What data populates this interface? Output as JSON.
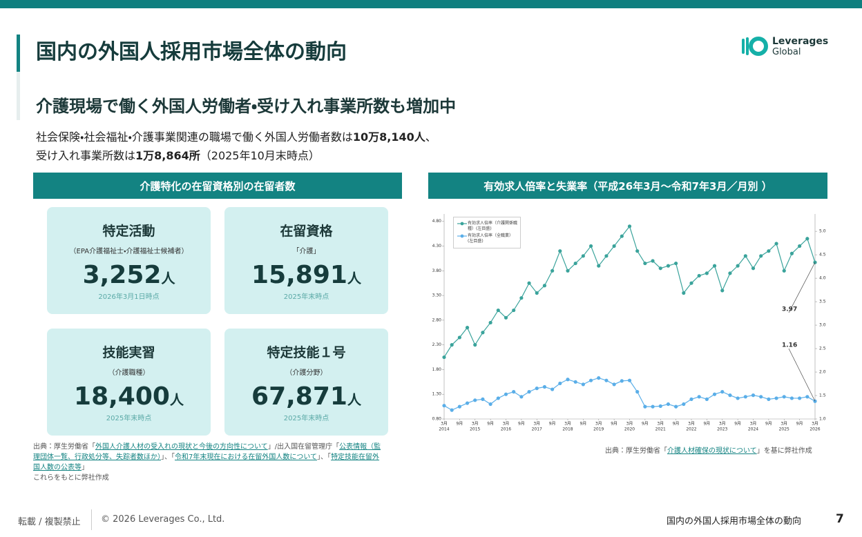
{
  "header": {
    "title": "国内の外国人採用市場全体の動向",
    "logo": [
      "Leverages",
      "Global"
    ]
  },
  "subtitle": "介護現場で働く外国人労働者・受け入れ事業所数も増加中",
  "intro": [
    [
      {
        "text": "社会保険・社会福祉・介護事業関連の職場で働く外国人労働者数は"
      },
      {
        "text": "10万8,140人",
        "bold": true
      },
      {
        "text": "、"
      }
    ],
    [
      {
        "text": "受け入れ事業所数は"
      },
      {
        "text": "1万8,864所",
        "bold": true
      },
      {
        "text": "（2025年10月末時点）"
      }
    ]
  ],
  "left_panel": {
    "header": "介護特化の在留資格別の在留者数",
    "cards": [
      {
        "title": "特定活動",
        "note": "（EPA介護福祉士・介護福祉士候補者）",
        "value": "3,252",
        "unit": "人",
        "date": "2026年3月1日時点"
      },
      {
        "title": "在留資格",
        "note": "「介護」",
        "value": "15,891",
        "unit": "人",
        "date": "2025年末時点"
      },
      {
        "title": "技能実習",
        "note": "（介護職種）",
        "value": "18,400",
        "unit": "人",
        "date": "2025年末時点"
      },
      {
        "title": "特定技能１号",
        "note": "（介護分野）",
        "value": "67,871",
        "unit": "人",
        "date": "2025年末時点"
      }
    ],
    "source": [
      [
        {
          "text": "出典：厚生労働省「"
        },
        {
          "text": "外国人介護人材の受入れの現状と今後の方向性について",
          "link": true
        },
        {
          "text": "」/出入国在留管理庁「"
        },
        {
          "text": "公表情報（監理団体一覧、行政処分等、失踪者数ほか）",
          "link": true
        },
        {
          "text": "」、「"
        },
        {
          "text": "令和7年末現在における在留外国人数について",
          "link": true
        },
        {
          "text": "」、「"
        },
        {
          "text": "特定技能在留外国人数の公表等",
          "link": true
        },
        {
          "text": "」"
        }
      ],
      [
        {
          "text": "これらをもとに弊社作成"
        }
      ]
    ]
  },
  "right_panel": {
    "header": "有効求人倍率と失業率（平成26年3月〜令和7年3月／月別 ）",
    "source": [
      [
        {
          "text": "出典：厚生労働省「"
        },
        {
          "text": "介護人材確保の現状について",
          "link": true
        },
        {
          "text": "」を基に弊社作成"
        }
      ]
    ]
  },
  "chart_data": {
    "type": "line",
    "categories": [
      "3月",
      null,
      "9月",
      null,
      "3月",
      null,
      "9月",
      null,
      "3月",
      null,
      "9月",
      null,
      "3月",
      null,
      "9月",
      null,
      "3月",
      null,
      "9月",
      null,
      "3月",
      null,
      "9月",
      null,
      "3月",
      null,
      "9月",
      null,
      "3月",
      null,
      "9月",
      null,
      "3月",
      null,
      "9月",
      null,
      "3月",
      null,
      "9月",
      null,
      "3月",
      null,
      "9月",
      null,
      "3月",
      null,
      "9月",
      null,
      "3月"
    ],
    "years": [
      "2014",
      "2015",
      "2016",
      "2017",
      "2018",
      "2019",
      "2020",
      "2021",
      "2022",
      "2023",
      "2024",
      "2025",
      "2026"
    ],
    "series": [
      {
        "name": "有効求人倍率（介護関係職種）(左目盛)",
        "color": "#3aa39b",
        "values": [
          2.05,
          2.3,
          2.45,
          2.65,
          2.3,
          2.55,
          2.75,
          3.0,
          2.85,
          3.0,
          3.25,
          3.55,
          3.35,
          3.5,
          3.8,
          4.2,
          3.8,
          3.95,
          4.1,
          4.3,
          3.9,
          4.1,
          4.3,
          4.5,
          4.7,
          4.2,
          3.95,
          4.0,
          3.85,
          3.9,
          3.95,
          3.35,
          3.55,
          3.7,
          3.75,
          3.9,
          3.4,
          3.75,
          3.9,
          4.1,
          3.85,
          4.1,
          4.2,
          4.35,
          3.8,
          4.15,
          4.3,
          4.45,
          3.97
        ]
      },
      {
        "name": "有効求人倍率（全職業）(左目盛)",
        "color": "#5aaee8",
        "values": [
          1.07,
          0.98,
          1.05,
          1.12,
          1.18,
          1.2,
          1.1,
          1.22,
          1.3,
          1.35,
          1.25,
          1.35,
          1.42,
          1.45,
          1.4,
          1.52,
          1.6,
          1.55,
          1.5,
          1.58,
          1.63,
          1.58,
          1.5,
          1.57,
          1.58,
          1.35,
          1.05,
          1.05,
          1.06,
          1.1,
          1.05,
          1.1,
          1.2,
          1.25,
          1.2,
          1.3,
          1.35,
          1.28,
          1.22,
          1.25,
          1.28,
          1.25,
          1.2,
          1.22,
          1.25,
          1.22,
          1.22,
          1.25,
          1.16
        ]
      }
    ],
    "annotations": [
      "3.97",
      "1.16"
    ],
    "ylim": [
      0.8,
      4.95
    ],
    "yticks": [
      {
        "value": 0.8,
        "label": "0.80"
      },
      {
        "value": 1.3,
        "label": "1.30"
      },
      {
        "value": 1.8,
        "label": "1.80"
      },
      {
        "value": 2.3,
        "label": "2.30"
      },
      {
        "value": 2.8,
        "label": "2.80"
      },
      {
        "value": 3.3,
        "label": "3.30"
      },
      {
        "value": 3.8,
        "label": "3.80"
      },
      {
        "value": 4.3,
        "label": "4.30"
      },
      {
        "value": 4.8,
        "label": "4.80"
      }
    ],
    "y2lim": [
      1.0,
      5.37
    ],
    "y2ticks": [
      {
        "value": 1.0,
        "label": "1.0"
      },
      {
        "value": 1.5,
        "label": "1.5"
      },
      {
        "value": 2.0,
        "label": "2.0"
      },
      {
        "value": 2.5,
        "label": "2.5"
      },
      {
        "value": 3.0,
        "label": "3.0"
      },
      {
        "value": 3.5,
        "label": "3.5"
      },
      {
        "value": 4.0,
        "label": "4.0"
      },
      {
        "value": 4.5,
        "label": "4.5"
      },
      {
        "value": 5.0,
        "label": "5.0"
      }
    ],
    "legend": "upper left"
  },
  "footer": {
    "left": "転載 / 複製禁止",
    "copyright": "© 2026 Leverages Co., Ltd.",
    "section": "国内の外国人採用市場全体の動向",
    "page": 7
  }
}
